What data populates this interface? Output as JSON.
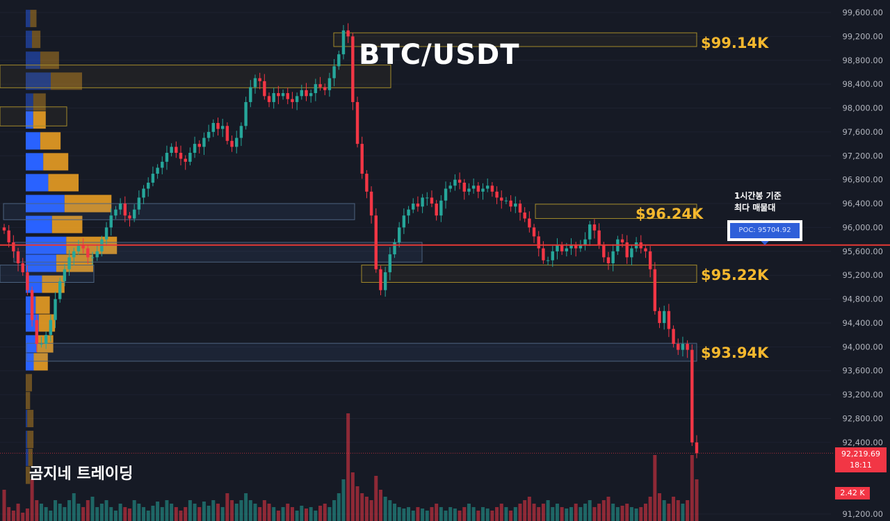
{
  "title": "BTC/USDT",
  "watermark": "곰지네 트레이딩",
  "poc": {
    "note_line1": "1시간봉 기준",
    "note_line2": "최다 매물대",
    "label": "POC: 95704.92",
    "price": 95704.92
  },
  "last_price": {
    "value": "92,219.69",
    "countdown": "18:11"
  },
  "volume_tag": "2.42 K",
  "colors": {
    "up": "#26a69a",
    "down": "#f23645",
    "vp_up": "#2962ff",
    "vp_down": "#f5a623",
    "level": "#f5b82e",
    "poc": "#e53935"
  },
  "chart_data": {
    "type": "candlestick",
    "title": "BTC/USDT",
    "y_axis": {
      "ylim": [
        91100,
        99800
      ],
      "tick_labels": [
        "99,600.00",
        "99,200.00",
        "98,800.00",
        "98,400.00",
        "98,000.00",
        "97,600.00",
        "97,200.00",
        "96,800.00",
        "96,400.00",
        "96,000.00",
        "95,600.00",
        "95,200.00",
        "94,800.00",
        "94,400.00",
        "94,000.00",
        "93,600.00",
        "93,200.00",
        "92,800.00",
        "92,400.00",
        "91,200.00"
      ],
      "tick_values": [
        99600,
        99200,
        98800,
        98400,
        98000,
        97600,
        97200,
        96800,
        96400,
        96000,
        95600,
        95200,
        94800,
        94400,
        94000,
        93600,
        93200,
        92800,
        92400,
        91200
      ]
    },
    "levels": [
      {
        "label": "$99.14K",
        "price": 99140
      },
      {
        "label": "$96.24K",
        "price": 96240
      },
      {
        "label": "$95.22K",
        "price": 95220
      },
      {
        "label": "$93.94K",
        "price": 93940
      }
    ],
    "close_series": [
      95950,
      95750,
      95600,
      95400,
      95250,
      94950,
      94450,
      94050,
      94050,
      94200,
      94450,
      94800,
      95100,
      95300,
      95500,
      95600,
      95700,
      95650,
      95500,
      95500,
      95600,
      95800,
      96000,
      96200,
      96300,
      96400,
      96200,
      96150,
      96300,
      96500,
      96650,
      96750,
      96900,
      97000,
      97100,
      97250,
      97350,
      97250,
      97150,
      97100,
      97250,
      97400,
      97350,
      97500,
      97600,
      97750,
      97650,
      97700,
      97450,
      97350,
      97500,
      97700,
      98100,
      98350,
      98500,
      98450,
      98200,
      98100,
      98250,
      98200,
      98250,
      98150,
      98100,
      98200,
      98300,
      98200,
      98250,
      98400,
      98350,
      98300,
      98500,
      98700,
      98900,
      99300,
      99200,
      98100,
      97400,
      96900,
      96600,
      96200,
      95300,
      94950,
      95250,
      95550,
      95750,
      96000,
      96200,
      96300,
      96400,
      96350,
      96500,
      96500,
      96400,
      96200,
      96450,
      96650,
      96700,
      96800,
      96750,
      96600,
      96650,
      96700,
      96600,
      96650,
      96700,
      96600,
      96500,
      96450,
      96450,
      96350,
      96400,
      96250,
      96150,
      96000,
      95850,
      95650,
      95450,
      95450,
      95600,
      95700,
      95600,
      95650,
      95700,
      95650,
      95700,
      95800,
      96050,
      95950,
      95700,
      95500,
      95400,
      95600,
      95800,
      95750,
      95500,
      95650,
      95750,
      95650,
      95600,
      95300,
      94600,
      94400,
      94600,
      94300,
      94050,
      93950,
      94050,
      93950,
      92400,
      92220
    ],
    "volume_series": [
      45,
      20,
      15,
      25,
      12,
      18,
      60,
      30,
      25,
      20,
      15,
      30,
      25,
      20,
      30,
      40,
      25,
      20,
      30,
      35,
      20,
      25,
      30,
      20,
      15,
      25,
      20,
      18,
      30,
      25,
      20,
      15,
      22,
      28,
      20,
      30,
      25,
      20,
      15,
      20,
      30,
      25,
      20,
      28,
      22,
      30,
      25,
      20,
      40,
      30,
      25,
      30,
      40,
      30,
      25,
      20,
      30,
      25,
      20,
      15,
      20,
      25,
      20,
      15,
      22,
      18,
      20,
      15,
      22,
      25,
      20,
      30,
      40,
      60,
      155,
      70,
      50,
      40,
      35,
      30,
      65,
      45,
      35,
      30,
      25,
      20,
      18,
      20,
      15,
      20,
      18,
      15,
      20,
      25,
      20,
      15,
      20,
      18,
      15,
      20,
      25,
      20,
      15,
      20,
      18,
      15,
      20,
      25,
      20,
      15,
      20,
      25,
      30,
      35,
      25,
      20,
      25,
      30,
      20,
      25,
      20,
      18,
      20,
      25,
      20,
      25,
      30,
      20,
      25,
      30,
      35,
      25,
      20,
      22,
      25,
      20,
      18,
      20,
      25,
      35,
      95,
      40,
      30,
      25,
      35,
      30,
      25,
      30,
      95,
      60
    ],
    "volume_profile": [
      {
        "price": 99500,
        "up": 18,
        "down": 20
      },
      {
        "price": 99150,
        "up": 25,
        "down": 27
      },
      {
        "price": 98800,
        "up": 58,
        "down": 60
      },
      {
        "price": 98450,
        "up": 100,
        "down": 100
      },
      {
        "price": 98100,
        "up": 30,
        "down": 40
      },
      {
        "price": 97800,
        "up": 30,
        "down": 40
      },
      {
        "price": 97450,
        "up": 58,
        "down": 65
      },
      {
        "price": 97100,
        "up": 70,
        "down": 80
      },
      {
        "price": 96750,
        "up": 90,
        "down": 97
      },
      {
        "price": 96400,
        "up": 155,
        "down": 150
      },
      {
        "price": 96050,
        "up": 105,
        "down": 97
      },
      {
        "price": 95700,
        "up": 162,
        "down": 162
      },
      {
        "price": 95400,
        "up": 122,
        "down": 118
      },
      {
        "price": 95050,
        "up": 65,
        "down": 72
      },
      {
        "price": 94700,
        "up": 40,
        "down": 45
      },
      {
        "price": 94400,
        "up": 52,
        "down": 52
      },
      {
        "price": 94050,
        "up": 45,
        "down": 52
      },
      {
        "price": 93750,
        "up": 32,
        "down": 45
      },
      {
        "price": 93400,
        "up": 0,
        "down": 20
      },
      {
        "price": 93100,
        "up": 0,
        "down": 14
      },
      {
        "price": 92800,
        "up": 6,
        "down": 20
      },
      {
        "price": 92450,
        "up": 6,
        "down": 20
      },
      {
        "price": 92150,
        "up": 10,
        "down": 14
      },
      {
        "price": 91850,
        "up": 0,
        "down": 14
      }
    ],
    "zones": [
      {
        "x0": 480,
        "x1": 1002,
        "y0": 99260,
        "y1": 99030,
        "kind": "level"
      },
      {
        "x0": 0,
        "x1": 562,
        "y0": 98720,
        "y1": 98340,
        "kind": "level"
      },
      {
        "x0": 0,
        "x1": 96,
        "y0": 98020,
        "y1": 97700,
        "kind": "level"
      },
      {
        "x0": 770,
        "x1": 1002,
        "y0": 96390,
        "y1": 96150,
        "kind": "level"
      },
      {
        "x0": 5,
        "x1": 510,
        "y0": 96400,
        "y1": 96130,
        "kind": "blue"
      },
      {
        "x0": 20,
        "x1": 607,
        "y0": 95750,
        "y1": 95420,
        "kind": "blue"
      },
      {
        "x0": 520,
        "x1": 1002,
        "y0": 95370,
        "y1": 95080,
        "kind": "level"
      },
      {
        "x0": 0,
        "x1": 135,
        "y0": 95370,
        "y1": 95080,
        "kind": "blue"
      },
      {
        "x0": 38,
        "x1": 1002,
        "y0": 94060,
        "y1": 93760,
        "kind": "blue"
      }
    ]
  }
}
